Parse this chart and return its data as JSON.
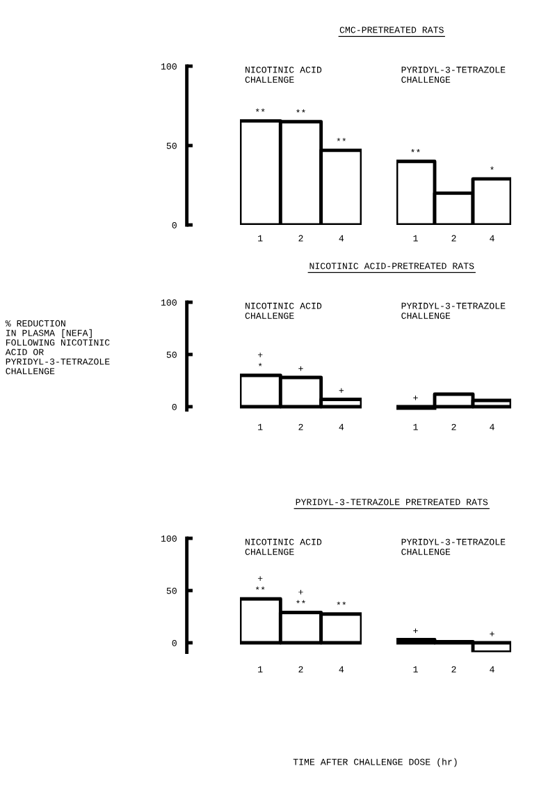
{
  "chart_data": [
    {
      "type": "bar",
      "title": "CMC-PRETREATED RATS",
      "subtitle": "NICOTINIC ACID\nCHALLENGE",
      "categories": [
        "1",
        "2",
        "4"
      ],
      "values": [
        65.5,
        65,
        47
      ],
      "color": "#ffffff",
      "ylim": [
        0,
        100
      ],
      "yticks": [
        0,
        50,
        100
      ],
      "annotations": [
        {
          "text": "**",
          "x": "1",
          "y": 65.5
        },
        {
          "text": "**",
          "x": "2",
          "y": 65
        },
        {
          "text": "**",
          "x": "4",
          "y": 47
        }
      ]
    },
    {
      "type": "bar",
      "subtitle": "PYRIDYL-3-TETRAZOLE\nCHALLENGE",
      "categories": [
        "1",
        "2",
        "4"
      ],
      "values": [
        40,
        20,
        29
      ],
      "color": "#ffffff",
      "ylim": [
        0,
        100
      ],
      "tick_labels": "x",
      "annotations": [
        {
          "text": "**",
          "x": "1",
          "y": 40
        },
        {
          "text": "*",
          "x": "4",
          "y": 29
        }
      ]
    },
    {
      "type": "bar",
      "title": "NICOTINIC ACID-PRETREATED RATS",
      "subtitle": "NICOTINIC ACID\nCHALLENGE",
      "ylabel": "% REDUCTION\nIN PLASMA [NEFA]\nFOLLOWING NICOTINIC\nACID OR\nPYRIDYL-3-TETRAZOLE\nCHALLENGE",
      "categories": [
        "1",
        "2",
        "4"
      ],
      "values": [
        30,
        28,
        7
      ],
      "color": "#ffffff",
      "ylim": [
        -3,
        100
      ],
      "yticks": [
        0,
        50,
        100
      ],
      "annotations": [
        {
          "text": "*",
          "x": "1",
          "y": 30
        },
        {
          "text": "+",
          "x": "1",
          "y": 30
        },
        {
          "text": "+",
          "x": "2",
          "y": 28
        },
        {
          "text": "+",
          "x": "4",
          "y": 7
        }
      ]
    },
    {
      "type": "bar",
      "subtitle": "PYRIDYL-3-TETRAZOLE\nCHALLENGE",
      "categories": [
        "1",
        "2",
        "4"
      ],
      "values": [
        -3,
        12,
        6
      ],
      "color": "#ffffff",
      "ylim": [
        -3,
        100
      ],
      "tick_labels": "x",
      "annotations": [
        {
          "text": "+",
          "x": "1",
          "y": -3
        }
      ]
    },
    {
      "type": "bar",
      "title": "PYRIDYL-3-TETRAZOLE PRETREATED RATS",
      "subtitle": "NICOTINIC ACID\nCHALLENGE",
      "xlabel": "TIME AFTER CHALLENGE DOSE (hr)",
      "categories": [
        "1",
        "2",
        "4"
      ],
      "values": [
        42,
        29,
        27.5
      ],
      "color": "#ffffff",
      "ylim": [
        -9,
        100
      ],
      "yticks": [
        0,
        50,
        100
      ],
      "annotations": [
        {
          "text": "**",
          "x": "1",
          "y": 42
        },
        {
          "text": "+",
          "x": "1",
          "y": 42
        },
        {
          "text": "**",
          "x": "2",
          "y": 29
        },
        {
          "text": "+",
          "x": "2",
          "y": 29
        },
        {
          "text": "**",
          "x": "4",
          "y": 27.5
        }
      ]
    },
    {
      "type": "bar",
      "subtitle": "PYRIDYL-3-TETRAZOLE\nCHALLENGE",
      "categories": [
        "1",
        "2",
        "4"
      ],
      "values": [
        3,
        1,
        -9
      ],
      "color": "#ffffff",
      "ylim": [
        -9,
        100
      ],
      "tick_labels": "x",
      "annotations": [
        {
          "text": "+",
          "x": "1",
          "y": 3
        },
        {
          "text": "+",
          "x": "4",
          "y": -9
        }
      ]
    }
  ]
}
